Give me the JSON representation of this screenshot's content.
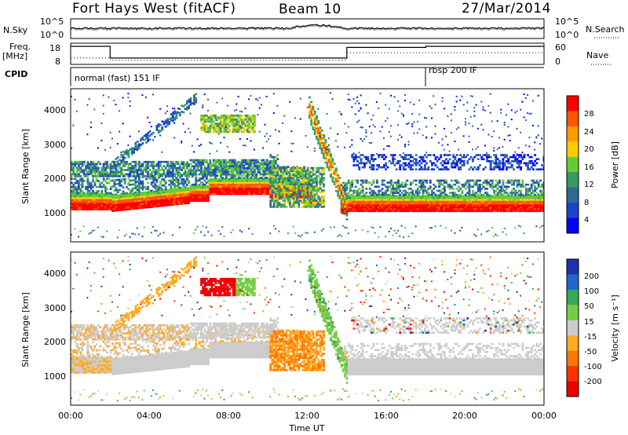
{
  "header": {
    "title": "Fort Hays West (fitACF)",
    "beam": "Beam 10",
    "date": "27/Mar/2014"
  },
  "noise_panel": {
    "left_label": "N.Sky",
    "right_label": "N.Search",
    "left_ticks": [
      "10^5",
      "10^0"
    ],
    "right_ticks": [
      "10^5",
      "10^0"
    ]
  },
  "freq_panel": {
    "left_label_line1": "Freq.",
    "left_label_line2": "[MHz]",
    "left_ticks": [
      "18",
      "8"
    ],
    "right_label": "Nave",
    "right_ticks": [
      "60",
      "0"
    ]
  },
  "cpid_panel": {
    "label": "CPID",
    "program_1": "normal (fast) 151 IF",
    "program_2": "rbsp 200 IF"
  },
  "axes": {
    "x_label": "Time UT",
    "x_ticks": [
      "00:00",
      "04:00",
      "08:00",
      "12:00",
      "16:00",
      "20:00",
      "00:00"
    ],
    "y_label": "Slant Range [km]",
    "y_ticks": [
      "1000",
      "2000",
      "3000",
      "4000"
    ]
  },
  "power_scale": {
    "label": "Power [dB]",
    "ticks": [
      "28",
      "24",
      "20",
      "16",
      "12",
      "8",
      "4"
    ],
    "colors": [
      "#ff0000",
      "#ff5500",
      "#ff9900",
      "#ffcc00",
      "#66cc33",
      "#339966",
      "#336699",
      "#1a44cc",
      "#0000ff"
    ]
  },
  "velocity_scale": {
    "label": "Velocity [m s⁻¹]",
    "ticks": [
      "200",
      "100",
      "50",
      "15",
      "-15",
      "-50",
      "-100",
      "-200"
    ],
    "colors": [
      "#1a33aa",
      "#2266cc",
      "#33aa55",
      "#77cc44",
      "#cccccc",
      "#ffaa22",
      "#ff7700",
      "#ff3300",
      "#ee0000"
    ]
  },
  "chart_data": {
    "type": "heatmap",
    "x_range": [
      "00:00",
      "24:00"
    ],
    "ylim": [
      0,
      4500
    ],
    "power_panel_features": [
      {
        "name": "near range band",
        "start_h": 0,
        "end_h": 24,
        "range_km": [
          900,
          1400
        ],
        "power_db": 28
      },
      {
        "name": "mid band",
        "start_h": 0,
        "end_h": 10,
        "range_km": [
          1800,
          2300
        ],
        "power_db": 12
      },
      {
        "name": "upper patch",
        "start_h": 6.5,
        "end_h": 9.3,
        "range_km": [
          3200,
          3700
        ],
        "power_db": 14
      },
      {
        "name": "descending echo",
        "start_h": 11.8,
        "end_h": 14,
        "range_km": [
          800,
          4000
        ],
        "power_db": 20
      }
    ],
    "velocity_panel_features": [
      {
        "name": "ground scatter",
        "start_h": 0,
        "end_h": 24,
        "range_km": [
          900,
          2400
        ],
        "velocity": 0
      },
      {
        "name": "positive patch",
        "start_h": 6.5,
        "end_h": 9.2,
        "range_km": [
          3200,
          3700
        ],
        "velocity": -200
      },
      {
        "name": "orange patch",
        "start_h": 10,
        "end_h": 13,
        "range_km": [
          1000,
          2200
        ],
        "velocity": -60
      },
      {
        "name": "descending echo",
        "start_h": 12,
        "end_h": 14,
        "range_km": [
          800,
          4000
        ],
        "velocity": 40
      }
    ]
  }
}
